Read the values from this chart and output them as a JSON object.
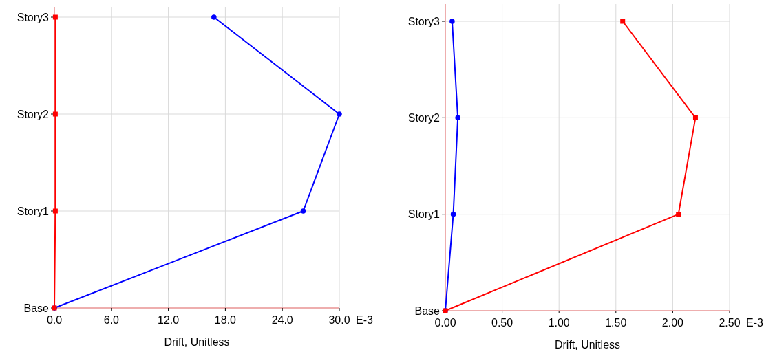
{
  "chart_data": [
    {
      "type": "line",
      "orientation": "horizontal",
      "categories": [
        "Story3",
        "Story2",
        "Story1",
        "Base"
      ],
      "xlabel": "Drift, Unitless",
      "xlim": [
        0,
        30
      ],
      "xticks": [
        {
          "value": 0,
          "label": "0.0"
        },
        {
          "value": 6,
          "label": "6.0"
        },
        {
          "value": 12,
          "label": "12.0"
        },
        {
          "value": 18,
          "label": "18.0"
        },
        {
          "value": 24,
          "label": "24.0"
        },
        {
          "value": 30,
          "label": "30.0"
        }
      ],
      "annotations": [
        "E-3"
      ],
      "grid": true,
      "series": [
        {
          "color": "#0000ff",
          "marker": "circle",
          "values": [
            16.8,
            30.0,
            26.2,
            0
          ]
        },
        {
          "color": "#ff0000",
          "marker": "square",
          "values": [
            0.1,
            0.1,
            0.1,
            0
          ]
        }
      ]
    },
    {
      "type": "line",
      "orientation": "horizontal",
      "categories": [
        "Story3",
        "Story2",
        "Story1",
        "Base"
      ],
      "xlabel": "Drift, Unitless",
      "xlim": [
        0,
        2.5
      ],
      "xticks": [
        {
          "value": 0,
          "label": "0.00"
        },
        {
          "value": 0.5,
          "label": "0.50"
        },
        {
          "value": 1,
          "label": "1.00"
        },
        {
          "value": 1.5,
          "label": "1.50"
        },
        {
          "value": 2,
          "label": "2.00"
        },
        {
          "value": 2.5,
          "label": "2.50"
        }
      ],
      "annotations": [
        "E-3"
      ],
      "grid": true,
      "series": [
        {
          "color": "#0000ff",
          "marker": "circle",
          "values": [
            0.06,
            0.11,
            0.07,
            0
          ]
        },
        {
          "color": "#ff0000",
          "marker": "square",
          "values": [
            1.56,
            2.2,
            2.05,
            0
          ]
        }
      ]
    }
  ]
}
